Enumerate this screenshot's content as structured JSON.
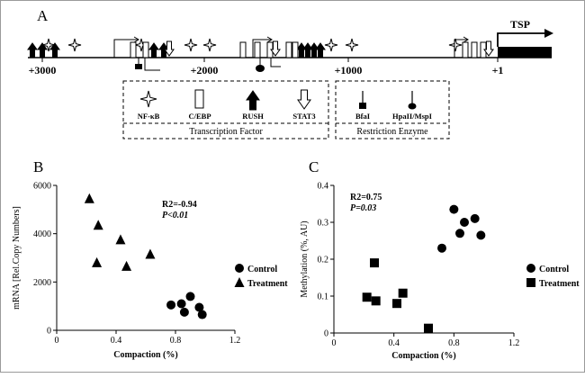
{
  "panel_a": {
    "letter": "A",
    "tsp_label": "TSP",
    "positions": [
      "+3000",
      "+2000",
      "+1000",
      "+1"
    ],
    "legend": {
      "transcription_factors": [
        "NF-κB",
        "C/EBP",
        "RUSH",
        "STAT3"
      ],
      "transcription_title": "Transcription Factor",
      "restriction_enzymes": [
        "BfaI",
        "HpaII/MspI"
      ],
      "restriction_title": "Restriction Enzyme"
    }
  },
  "chart_data": [
    {
      "type": "scatter",
      "panel": "B",
      "xlabel": "Compaction (%)",
      "ylabel": "mRNA [Rel.Copy Numbers]",
      "xlim": [
        0,
        1.2
      ],
      "ylim": [
        0,
        6000
      ],
      "xticks": [
        "0",
        "0.4",
        "0.8",
        "1.2"
      ],
      "yticks": [
        "0",
        "2000",
        "4000",
        "6000"
      ],
      "annotation_r2": "R2=-0.94",
      "annotation_p": "P<0.01",
      "series": [
        {
          "name": "Control",
          "marker": "circle",
          "x": [
            0.77,
            0.84,
            0.86,
            0.9,
            0.96,
            0.98
          ],
          "y": [
            1050,
            1100,
            750,
            1400,
            950,
            650
          ]
        },
        {
          "name": "Treatment",
          "marker": "triangle",
          "x": [
            0.22,
            0.27,
            0.28,
            0.43,
            0.47,
            0.63
          ],
          "y": [
            5450,
            2800,
            4350,
            3750,
            2650,
            3150
          ]
        }
      ],
      "legend_position": "right"
    },
    {
      "type": "scatter",
      "panel": "C",
      "xlabel": "Compaction (%)",
      "ylabel": "Methylation (%, AU)",
      "xlim": [
        0,
        1.2
      ],
      "ylim": [
        0,
        0.4
      ],
      "xticks": [
        "0",
        "0.4",
        "0.8",
        "1.2"
      ],
      "yticks": [
        "0",
        "0.1",
        "0.2",
        "0.3",
        "0.4"
      ],
      "annotation_r2": "R2=0.75",
      "annotation_p": "P=0.03",
      "series": [
        {
          "name": "Control",
          "marker": "circle",
          "x": [
            0.72,
            0.8,
            0.84,
            0.87,
            0.94,
            0.98
          ],
          "y": [
            0.23,
            0.335,
            0.27,
            0.3,
            0.31,
            0.265
          ]
        },
        {
          "name": "Treatment",
          "marker": "square",
          "x": [
            0.22,
            0.27,
            0.28,
            0.42,
            0.46,
            0.63
          ],
          "y": [
            0.097,
            0.19,
            0.087,
            0.08,
            0.108,
            0.013
          ]
        }
      ],
      "legend_position": "right"
    }
  ]
}
